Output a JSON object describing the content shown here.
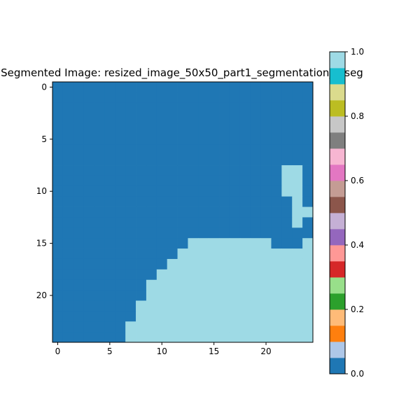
{
  "chart_data": {
    "type": "heatmap",
    "title": "Segmented Image: resized_image_50x50_part1_segmentation_0.seg",
    "xlabel": "",
    "ylabel": "",
    "grid": false,
    "rows": 25,
    "cols": 25,
    "x_ticks": [
      0,
      5,
      10,
      15,
      20
    ],
    "y_ticks": [
      0,
      5,
      10,
      15,
      20
    ],
    "x_tick_labels": [
      "0",
      "5",
      "10",
      "15",
      "20"
    ],
    "y_tick_labels": [
      "0",
      "5",
      "10",
      "15",
      "20"
    ],
    "mask_rows_value_1": [
      {
        "row": 8,
        "cols": [
          [
            22,
            23
          ]
        ]
      },
      {
        "row": 9,
        "cols": [
          [
            22,
            23
          ]
        ]
      },
      {
        "row": 10,
        "cols": [
          [
            22,
            23
          ]
        ]
      },
      {
        "row": 11,
        "cols": [
          [
            23,
            23
          ]
        ]
      },
      {
        "row": 12,
        "cols": [
          [
            23,
            24
          ]
        ]
      },
      {
        "row": 13,
        "cols": [
          [
            23,
            23
          ]
        ]
      },
      {
        "row": 15,
        "cols": [
          [
            13,
            20
          ],
          [
            24,
            24
          ]
        ]
      },
      {
        "row": 16,
        "cols": [
          [
            12,
            24
          ]
        ]
      },
      {
        "row": 17,
        "cols": [
          [
            11,
            24
          ]
        ]
      },
      {
        "row": 18,
        "cols": [
          [
            10,
            24
          ]
        ]
      },
      {
        "row": 19,
        "cols": [
          [
            9,
            24
          ]
        ]
      },
      {
        "row": 20,
        "cols": [
          [
            9,
            24
          ]
        ]
      },
      {
        "row": 21,
        "cols": [
          [
            8,
            24
          ]
        ]
      },
      {
        "row": 22,
        "cols": [
          [
            8,
            24
          ]
        ]
      },
      {
        "row": 23,
        "cols": [
          [
            7,
            24
          ]
        ]
      },
      {
        "row": 24,
        "cols": [
          [
            7,
            24
          ]
        ]
      }
    ],
    "colorbar": {
      "colormap": "tab20",
      "vmin": 0.0,
      "vmax": 1.0,
      "ticks": [
        0.0,
        0.2,
        0.4,
        0.6,
        0.8,
        1.0
      ],
      "tick_labels": [
        "0.0",
        "0.2",
        "0.4",
        "0.6",
        "0.8",
        "1.0"
      ],
      "colors": [
        "#1f77b4",
        "#aec7e8",
        "#ff7f0e",
        "#ffbb78",
        "#2ca02c",
        "#98df8a",
        "#d62728",
        "#ff9896",
        "#9467bd",
        "#c5b0d5",
        "#8c564b",
        "#c49c94",
        "#e377c2",
        "#f7b6d2",
        "#7f7f7f",
        "#c7c7c7",
        "#bcbd22",
        "#dbdb8d",
        "#17becf",
        "#9edae5"
      ]
    }
  }
}
